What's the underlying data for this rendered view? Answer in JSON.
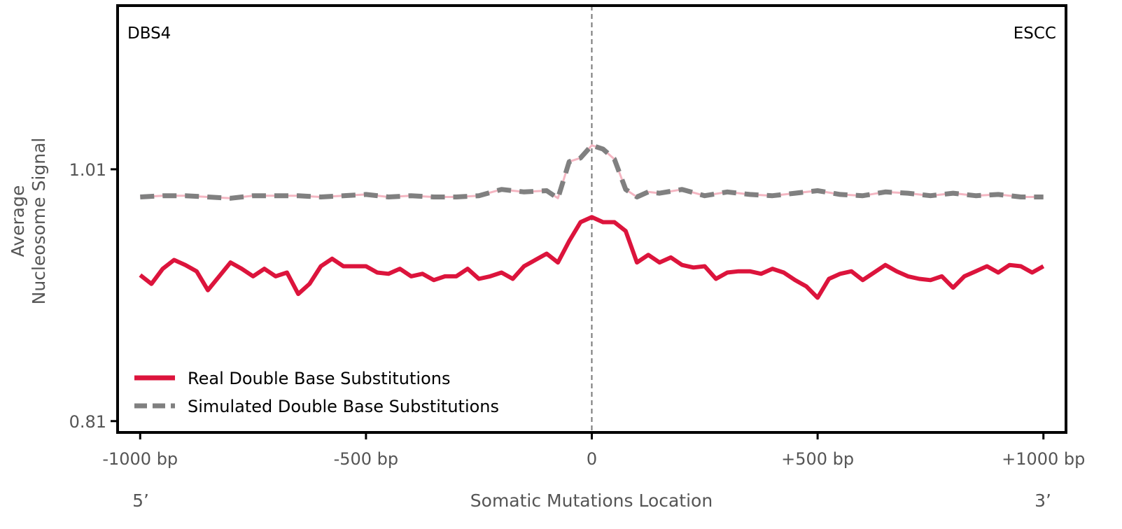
{
  "chart_data": {
    "type": "line",
    "signature_label": "DBS4",
    "cancer_type_label": "ESCC",
    "xlabel": "Somatic Mutations Location",
    "ylabel_line1": "Average",
    "ylabel_line2": "Nucleosome Signal",
    "x_end_labels": {
      "left": "5’",
      "right": "3’"
    },
    "xlim": [
      -1050,
      1050
    ],
    "ylim": [
      0.801,
      1.14
    ],
    "x_ticks": [
      {
        "value": -1000,
        "label": "-1000 bp"
      },
      {
        "value": -500,
        "label": "-500 bp"
      },
      {
        "value": 0,
        "label": "0"
      },
      {
        "value": 500,
        "label": "+500 bp"
      },
      {
        "value": 1000,
        "label": "+1000 bp"
      }
    ],
    "y_ticks": [
      {
        "value": 1.01,
        "label": "1.01"
      },
      {
        "value": 0.81,
        "label": "0.81"
      }
    ],
    "vline_at": 0,
    "legend_position": "bottom-left",
    "colors": {
      "real": "#dc143c",
      "simulated": "#808080",
      "simulated_under": "#f4b6c2",
      "vline": "#777777"
    },
    "series": [
      {
        "name": "Real Double Base Substitutions",
        "style": "solid",
        "x": [
          -1000,
          -975,
          -950,
          -925,
          -900,
          -875,
          -850,
          -825,
          -800,
          -775,
          -750,
          -725,
          -700,
          -675,
          -650,
          -625,
          -600,
          -575,
          -550,
          -525,
          -500,
          -475,
          -450,
          -425,
          -400,
          -375,
          -350,
          -325,
          -300,
          -275,
          -250,
          -225,
          -200,
          -175,
          -150,
          -125,
          -100,
          -75,
          -50,
          -25,
          0,
          25,
          50,
          75,
          100,
          125,
          150,
          175,
          200,
          225,
          250,
          275,
          300,
          325,
          350,
          375,
          400,
          425,
          450,
          475,
          500,
          525,
          550,
          575,
          600,
          625,
          650,
          675,
          700,
          725,
          750,
          775,
          800,
          825,
          850,
          875,
          900,
          925,
          950,
          975,
          1000
        ],
        "y": [
          0.926,
          0.919,
          0.931,
          0.938,
          0.934,
          0.929,
          0.914,
          0.925,
          0.936,
          0.931,
          0.925,
          0.931,
          0.925,
          0.928,
          0.911,
          0.919,
          0.933,
          0.939,
          0.933,
          0.933,
          0.933,
          0.928,
          0.927,
          0.931,
          0.925,
          0.927,
          0.922,
          0.925,
          0.925,
          0.931,
          0.923,
          0.925,
          0.928,
          0.923,
          0.933,
          0.938,
          0.943,
          0.936,
          0.953,
          0.968,
          0.972,
          0.968,
          0.968,
          0.961,
          0.936,
          0.942,
          0.936,
          0.94,
          0.934,
          0.932,
          0.933,
          0.923,
          0.928,
          0.929,
          0.929,
          0.927,
          0.931,
          0.928,
          0.922,
          0.917,
          0.908,
          0.923,
          0.927,
          0.929,
          0.922,
          0.928,
          0.934,
          0.929,
          0.925,
          0.923,
          0.922,
          0.925,
          0.916,
          0.925,
          0.929,
          0.933,
          0.928,
          0.934,
          0.933,
          0.928,
          0.933
        ]
      },
      {
        "name": "Simulated Double Base Substitutions",
        "style": "dashed",
        "x": [
          -1000,
          -950,
          -900,
          -850,
          -800,
          -750,
          -700,
          -650,
          -600,
          -550,
          -500,
          -450,
          -400,
          -350,
          -300,
          -250,
          -200,
          -150,
          -100,
          -75,
          -50,
          -25,
          0,
          25,
          50,
          75,
          100,
          125,
          150,
          200,
          250,
          300,
          350,
          400,
          450,
          500,
          550,
          600,
          650,
          700,
          750,
          800,
          850,
          900,
          950,
          1000
        ],
        "y": [
          0.988,
          0.989,
          0.989,
          0.988,
          0.987,
          0.989,
          0.989,
          0.989,
          0.988,
          0.989,
          0.99,
          0.988,
          0.989,
          0.988,
          0.988,
          0.989,
          0.994,
          0.992,
          0.993,
          0.987,
          1.016,
          1.019,
          1.029,
          1.026,
          1.018,
          0.994,
          0.988,
          0.992,
          0.991,
          0.994,
          0.989,
          0.992,
          0.99,
          0.989,
          0.991,
          0.993,
          0.99,
          0.989,
          0.992,
          0.991,
          0.989,
          0.991,
          0.989,
          0.99,
          0.988,
          0.988
        ]
      }
    ]
  }
}
